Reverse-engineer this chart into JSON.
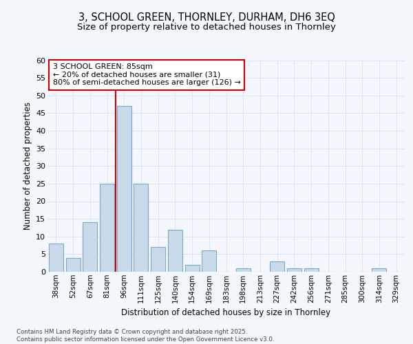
{
  "title_line1": "3, SCHOOL GREEN, THORNLEY, DURHAM, DH6 3EQ",
  "title_line2": "Size of property relative to detached houses in Thornley",
  "xlabel": "Distribution of detached houses by size in Thornley",
  "ylabel": "Number of detached properties",
  "categories": [
    "38sqm",
    "52sqm",
    "67sqm",
    "81sqm",
    "96sqm",
    "111sqm",
    "125sqm",
    "140sqm",
    "154sqm",
    "169sqm",
    "183sqm",
    "198sqm",
    "213sqm",
    "227sqm",
    "242sqm",
    "256sqm",
    "271sqm",
    "285sqm",
    "300sqm",
    "314sqm",
    "329sqm"
  ],
  "values": [
    8,
    4,
    14,
    25,
    47,
    25,
    7,
    12,
    2,
    6,
    0,
    1,
    0,
    3,
    1,
    1,
    0,
    0,
    0,
    1,
    0
  ],
  "bar_color": "#c9daea",
  "bar_edge_color": "#7aaac8",
  "ylim": [
    0,
    60
  ],
  "yticks": [
    0,
    5,
    10,
    15,
    20,
    25,
    30,
    35,
    40,
    45,
    50,
    55,
    60
  ],
  "vline_color": "#cc0000",
  "vline_x": 3.5,
  "annotation_text": "3 SCHOOL GREEN: 85sqm\n← 20% of detached houses are smaller (31)\n80% of semi-detached houses are larger (126) →",
  "annotation_box_color": "#ffffff",
  "annotation_box_edge": "#cc0000",
  "footer_text": "Contains HM Land Registry data © Crown copyright and database right 2025.\nContains public sector information licensed under the Open Government Licence v3.0.",
  "background_color": "#f4f7fb",
  "grid_color": "#dce8f5",
  "title_fontsize": 10.5,
  "subtitle_fontsize": 9.5
}
